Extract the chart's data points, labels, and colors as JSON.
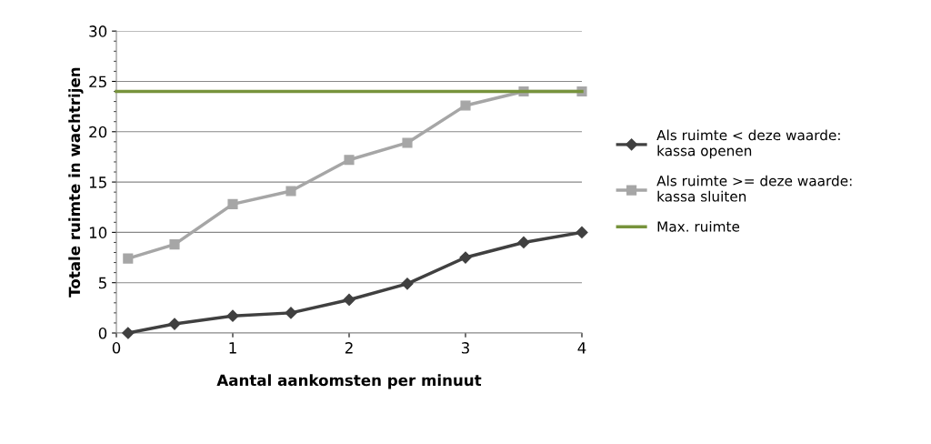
{
  "chart_data": {
    "type": "line",
    "xlabel": "Aantal aankomsten per minuut",
    "ylabel": "Totale ruimte in wachtrijen",
    "xlim": [
      0,
      4
    ],
    "xticks": [
      0,
      1,
      2,
      3,
      4
    ],
    "ylim": [
      0,
      30
    ],
    "yticks": [
      0,
      5,
      10,
      15,
      20,
      25,
      30
    ],
    "grid": "y",
    "legend": "right",
    "series": [
      {
        "name": "Als ruimte < deze waarde: kassa openen",
        "color": "#404040",
        "marker": "diamond",
        "x": [
          0.1,
          0.5,
          1,
          1.5,
          2,
          2.5,
          3,
          3.5,
          4
        ],
        "values": [
          0,
          0.9,
          1.7,
          2.0,
          3.3,
          4.9,
          7.5,
          9.0,
          10
        ]
      },
      {
        "name": "Als ruimte >= deze waarde: kassa sluiten",
        "color": "#a6a6a6",
        "marker": "square",
        "x": [
          0.1,
          0.5,
          1,
          1.5,
          2,
          2.5,
          3,
          3.5,
          4
        ],
        "values": [
          7.4,
          8.8,
          12.8,
          14.1,
          17.2,
          18.9,
          22.6,
          24,
          24
        ]
      },
      {
        "name": "Max. ruimte",
        "color": "#77933c",
        "marker": "none",
        "x": [
          0,
          4
        ],
        "values": [
          24,
          24
        ]
      }
    ]
  }
}
